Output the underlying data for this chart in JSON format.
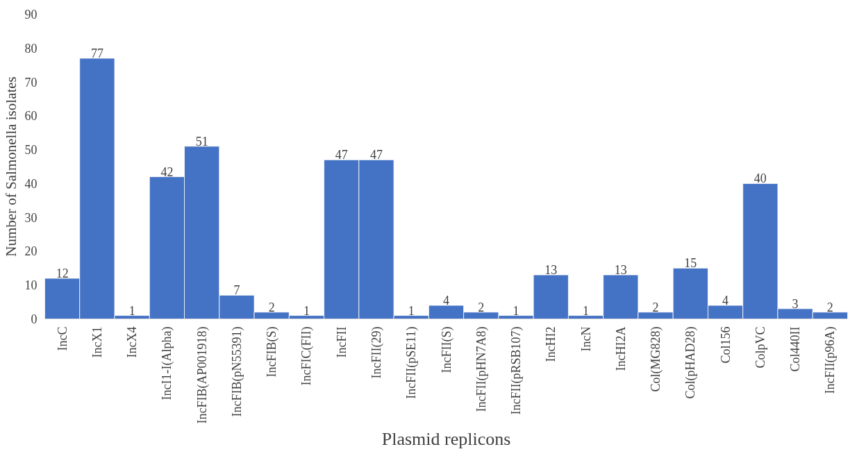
{
  "chart_data": {
    "type": "bar",
    "xlabel": "Plasmid replicons",
    "ylabel": "Number of Salmonella isolates",
    "categories": [
      "IncC",
      "IncX1",
      "IncX4",
      "IncI1-I(Alpha)",
      "IncFIB(AP001918)",
      "IncFIB(pN55391)",
      "IncFIB(S)",
      "IncFIC(FII)",
      "IncFII",
      "IncFII(29)",
      "IncFII(pSE11)",
      "IncFII(S)",
      "IncFII(pHN7A8)",
      "IncFII(pRSB107)",
      "IncHI2",
      "IncN",
      "IncHI2A",
      "Col(MG828)",
      "Col(pHAD28)",
      "Col156",
      "ColpVC",
      "Col440II",
      "IncFII(p96A)"
    ],
    "values": [
      12,
      77,
      1,
      42,
      51,
      7,
      2,
      1,
      47,
      47,
      1,
      4,
      2,
      1,
      13,
      1,
      13,
      2,
      15,
      4,
      40,
      3,
      2
    ],
    "color": "#4472c4",
    "ylim": [
      0,
      90
    ],
    "yticks": [
      0,
      10,
      20,
      30,
      40,
      50,
      60,
      70,
      80,
      90
    ],
    "grid": false,
    "data_labels": true
  }
}
